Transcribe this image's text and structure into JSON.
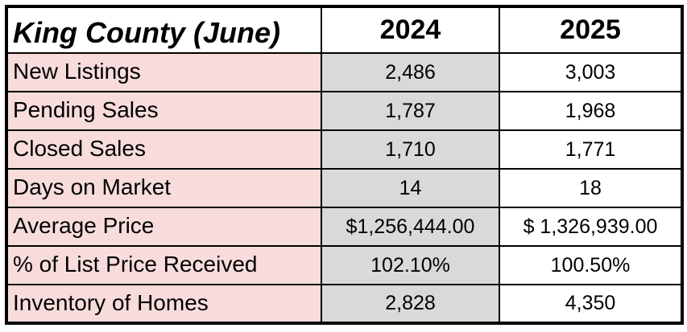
{
  "chart_data": {
    "type": "table",
    "title": "King County (June)",
    "categories": [
      "New Listings",
      "Pending Sales",
      "Closed Sales",
      "Days on Market",
      "Average Price",
      "% of List Price Received",
      "Inventory of Homes"
    ],
    "series": [
      {
        "name": "2024",
        "values": [
          "2,486",
          "1,787",
          "1,710",
          "14",
          "$1,256,444.00",
          "102.10%",
          "2,828"
        ]
      },
      {
        "name": "2025",
        "values": [
          "3,003",
          "1,968",
          "1,771",
          "18",
          "$ 1,326,939.00",
          "100.50%",
          "4,350"
        ]
      }
    ]
  },
  "colors": {
    "row_label_bg": "#f8dcdc",
    "col_2024_bg": "#d9d9d9",
    "col_2025_bg": "#ffffff",
    "header_bg": "#ffffff",
    "border": "#000000",
    "text": "#000000"
  }
}
